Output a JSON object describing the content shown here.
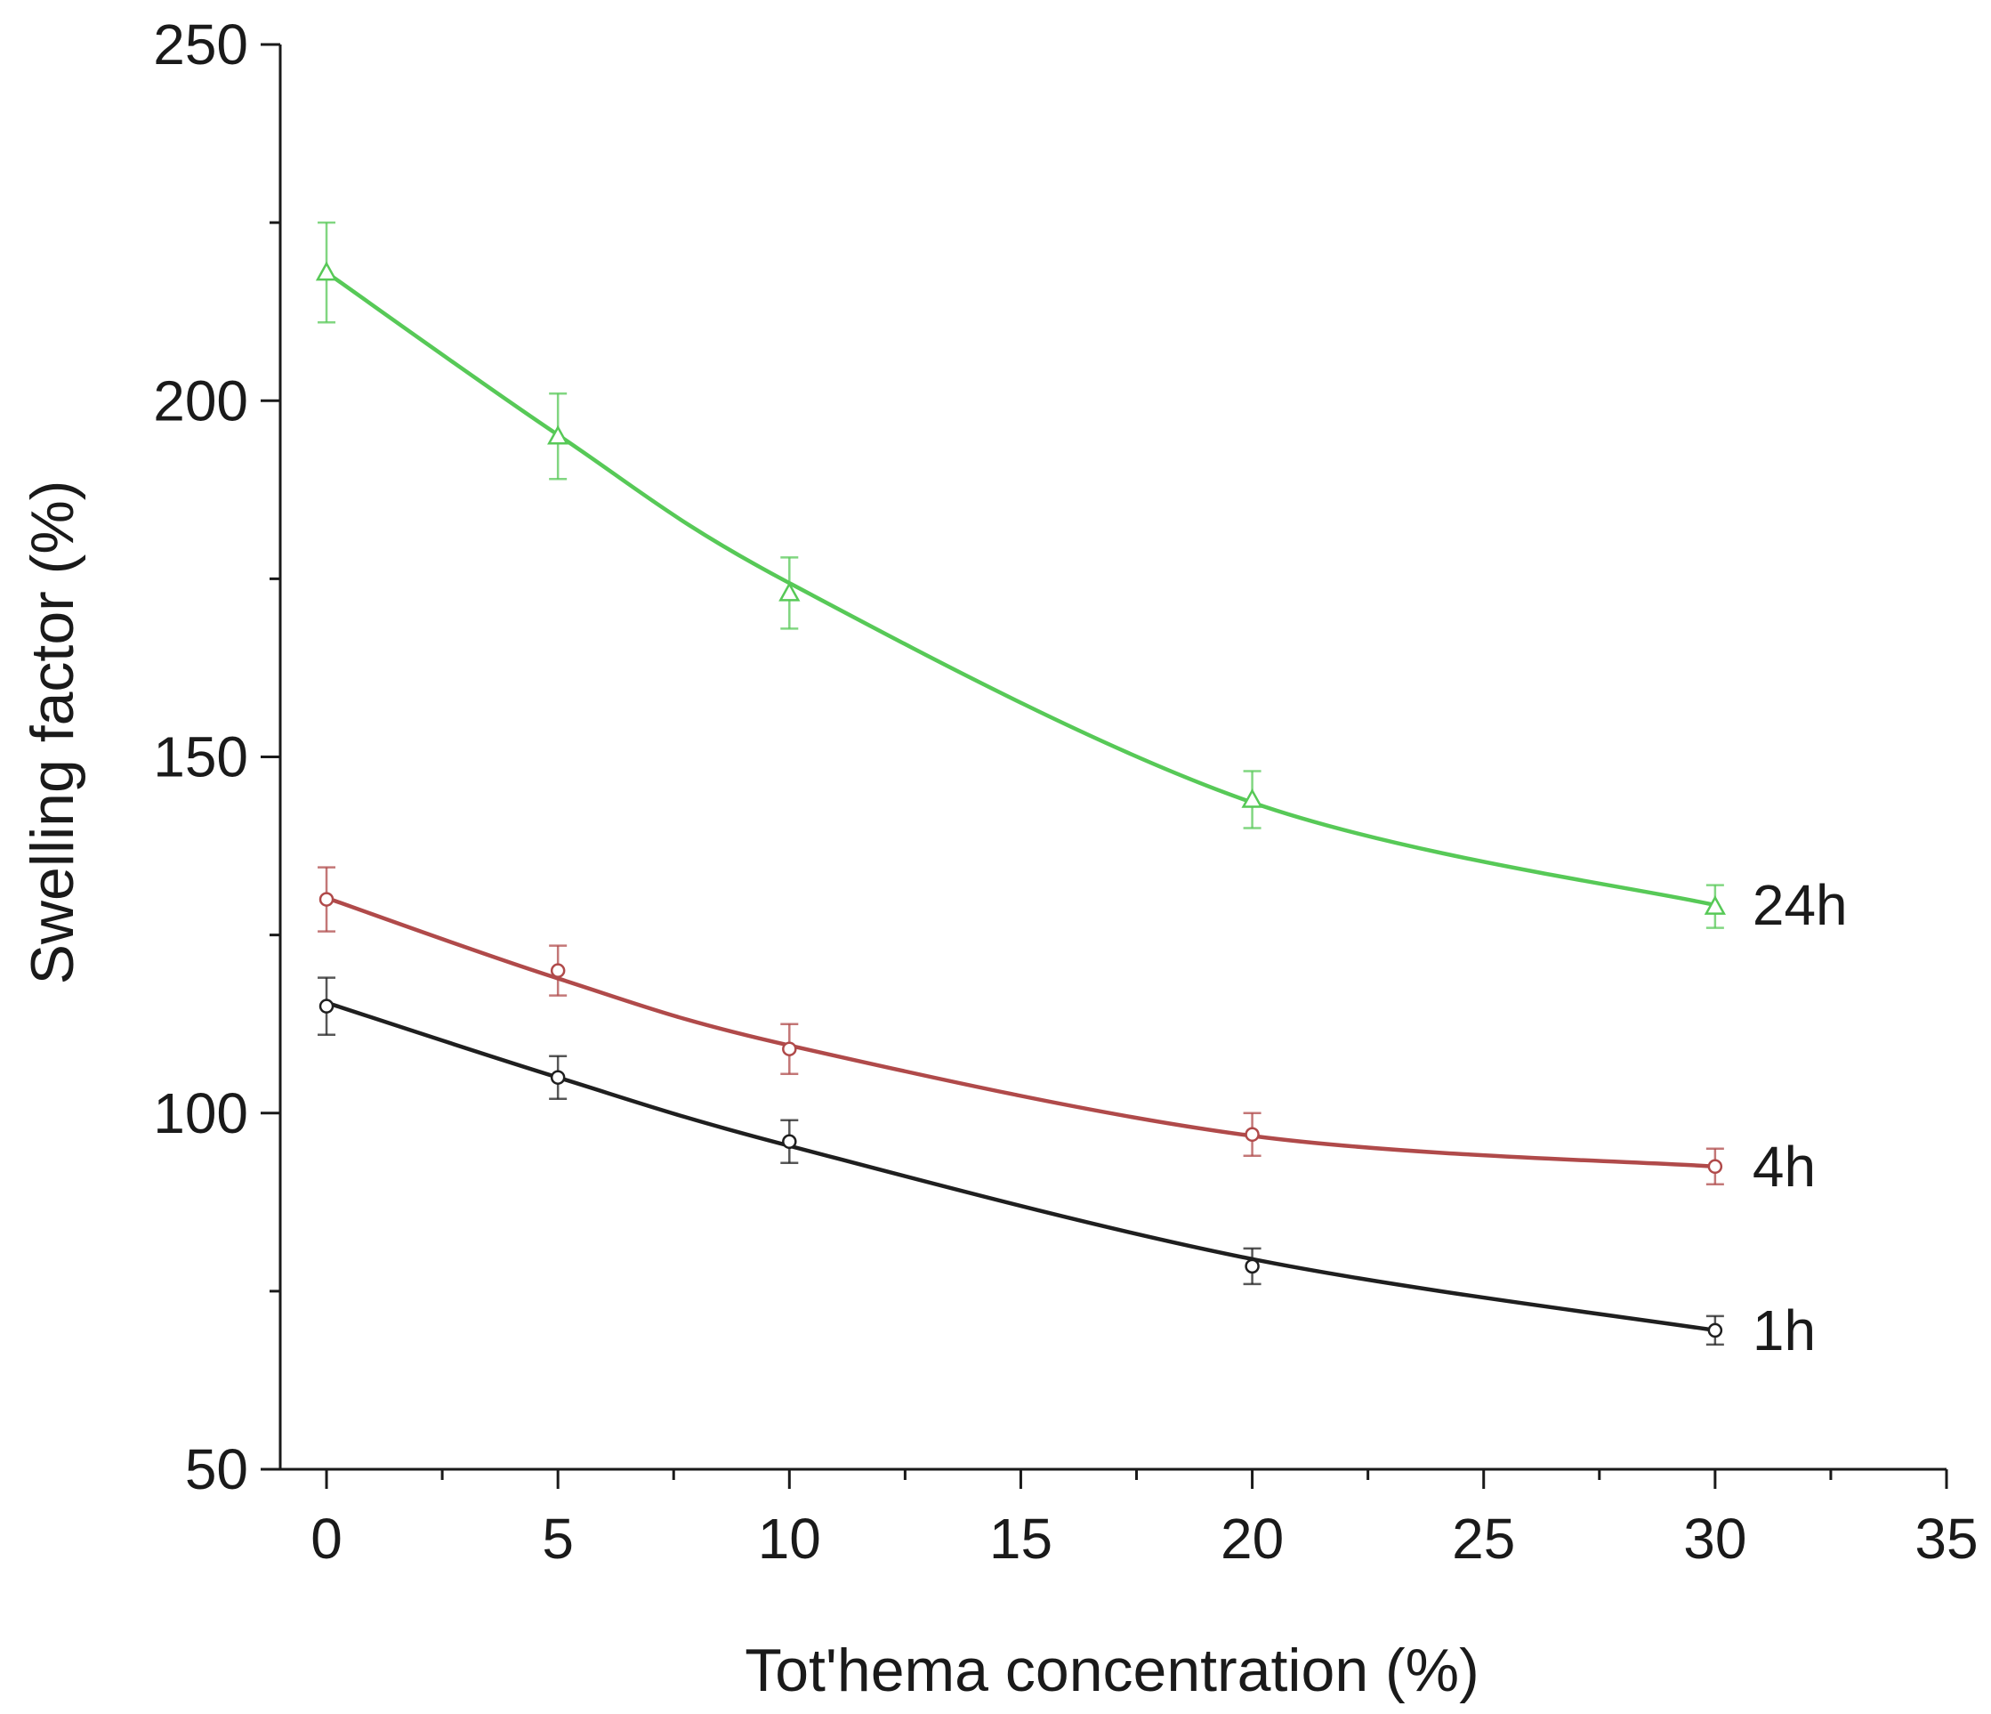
{
  "chart_data": {
    "type": "line",
    "title": "",
    "xlabel": "Tot'hema concentration (%)",
    "ylabel": "Swelling factor (%)",
    "xlim": [
      -1,
      35
    ],
    "ylim": [
      50,
      250
    ],
    "xticks": [
      0,
      5,
      10,
      15,
      20,
      25,
      30,
      35
    ],
    "yticks": [
      50,
      100,
      150,
      200,
      250
    ],
    "grid": false,
    "legend": "inline labels at right end of each curve",
    "series": [
      {
        "name": "24h",
        "label": "24h",
        "color": "#57c957",
        "marker": "triangle-open",
        "x": [
          0,
          5,
          10,
          20,
          30
        ],
        "y": [
          218,
          195,
          173,
          144,
          129
        ],
        "error": [
          7,
          6,
          5,
          4,
          3
        ],
        "fit": [
          218,
          195.2,
          174.4,
          143.6,
          129.2
        ]
      },
      {
        "name": "4h",
        "label": "4h",
        "color": "#b04a4a",
        "marker": "circle-open",
        "x": [
          0,
          5,
          10,
          20,
          30
        ],
        "y": [
          130,
          120,
          109,
          97,
          92.5
        ],
        "error": [
          4.5,
          3.5,
          3.5,
          3,
          2.5
        ],
        "fit": [
          130.2,
          118.9,
          109.5,
          96.8,
          92.5
        ]
      },
      {
        "name": "1h",
        "label": "1h",
        "color": "#1f1f1f",
        "marker": "circle-open",
        "x": [
          0,
          5,
          10,
          20,
          30
        ],
        "y": [
          115,
          105,
          96,
          78.5,
          69.5
        ],
        "error": [
          4,
          3,
          3,
          2.5,
          2
        ],
        "fit": [
          115.5,
          105.0,
          95.4,
          79.5,
          69.5
        ]
      }
    ]
  }
}
